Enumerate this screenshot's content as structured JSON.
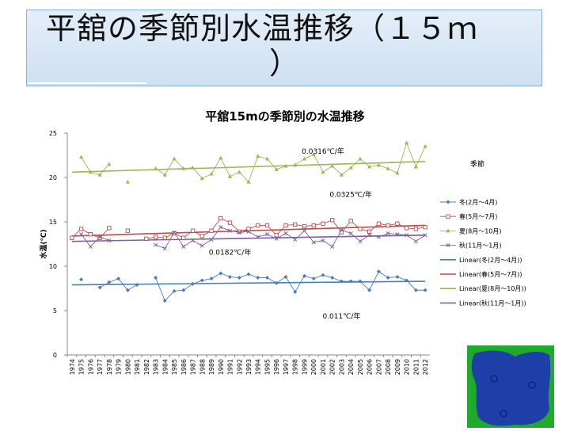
{
  "slide": {
    "title_line1": "平舘の季節別水温推移（１５ｍ",
    "title_line2": "）"
  },
  "chart_data": {
    "type": "line",
    "title": "平舘15mの季節別の水温推移",
    "ylabel": "水温(℃)",
    "ylim": [
      0,
      25
    ],
    "yticks": [
      0,
      5,
      10,
      15,
      20,
      25
    ],
    "grid": false,
    "legend_title": "季節",
    "legend_position": "right",
    "categories": [
      "1974",
      "1975",
      "1976",
      "1977",
      "1978",
      "1979",
      "1980",
      "1981",
      "1982",
      "1983",
      "1984",
      "1985",
      "1986",
      "1987",
      "1988",
      "1989",
      "1990",
      "1991",
      "1992",
      "1993",
      "1994",
      "1995",
      "1996",
      "1997",
      "1998",
      "1999",
      "2000",
      "2001",
      "2002",
      "2003",
      "2004",
      "2005",
      "2006",
      "2007",
      "2008",
      "2009",
      "2010",
      "2011",
      "2012"
    ],
    "series": [
      {
        "name": "冬(2月～4月)",
        "color": "#4a7ebb",
        "marker": "diamond",
        "values": [
          null,
          8.5,
          null,
          7.6,
          8.2,
          8.6,
          7.3,
          7.9,
          null,
          8.7,
          6.1,
          7.2,
          7.3,
          8.0,
          8.4,
          8.6,
          9.2,
          8.8,
          8.7,
          9.1,
          8.7,
          8.7,
          8.1,
          8.8,
          7.1,
          8.9,
          8.6,
          9.0,
          8.7,
          8.3,
          8.3,
          8.3,
          7.3,
          9.4,
          8.7,
          8.8,
          8.4,
          7.3,
          7.3
        ]
      },
      {
        "name": "春(5月～7月)",
        "color": "#be4b48",
        "marker": "square",
        "values": [
          13.2,
          14.2,
          13.6,
          13.2,
          14.3,
          null,
          14.0,
          null,
          13.1,
          13.3,
          13.2,
          13.7,
          13.2,
          14.0,
          13.4,
          14.0,
          15.4,
          14.9,
          13.9,
          14.2,
          14.6,
          14.6,
          13.5,
          14.6,
          14.7,
          14.5,
          14.6,
          14.8,
          15.2,
          13.8,
          15.1,
          14.2,
          13.9,
          14.8,
          14.6,
          14.8,
          14.3,
          14.2,
          14.4
        ]
      },
      {
        "name": "夏(8月～10月)",
        "color": "#98b954",
        "marker": "triangle",
        "values": [
          null,
          22.3,
          20.6,
          20.3,
          21.5,
          null,
          19.5,
          null,
          null,
          21.0,
          20.3,
          22.1,
          21.0,
          21.1,
          19.9,
          20.4,
          22.2,
          20.1,
          20.6,
          19.5,
          22.4,
          22.1,
          20.9,
          21.3,
          21.4,
          22.1,
          22.6,
          20.6,
          21.3,
          20.3,
          21.1,
          22.1,
          21.2,
          21.4,
          21.0,
          20.5,
          23.9,
          21.2,
          23.5
        ]
      },
      {
        "name": "秋(11月～1月)",
        "color": "#7d60a0",
        "marker": "x",
        "values": [
          null,
          13.6,
          12.2,
          13.3,
          12.9,
          null,
          null,
          null,
          null,
          12.4,
          12.0,
          13.8,
          12.2,
          12.9,
          12.3,
          13.0,
          14.4,
          14.0,
          13.8,
          13.9,
          13.3,
          13.6,
          13.1,
          13.7,
          13.0,
          14.0,
          12.7,
          12.9,
          12.2,
          14.1,
          13.7,
          12.8,
          13.5,
          13.3,
          13.7,
          13.6,
          13.5,
          12.8,
          13.5
        ]
      }
    ],
    "trendlines": [
      {
        "name": "Linear(冬(2月～4月))",
        "color": "#4a7ebb",
        "start": 7.9,
        "end": 8.3
      },
      {
        "name": "Linear(春(5月～7月))",
        "color": "#be4b48",
        "start": 13.4,
        "end": 14.6
      },
      {
        "name": "Linear(夏(8月～10月))",
        "color": "#98b954",
        "start": 20.6,
        "end": 21.8
      },
      {
        "name": "Linear(秋(11月～1月))",
        "color": "#7d60a0",
        "start": 12.8,
        "end": 13.5
      }
    ],
    "annotations": [
      {
        "text": "0.0316℃/年",
        "year": "2001",
        "value": 22.7
      },
      {
        "text": "0.0325℃/年",
        "year": "2004",
        "value": 17.8
      },
      {
        "text": "0.0182℃/年",
        "year": "1991",
        "value": 11.3
      },
      {
        "text": "0.011℃/年",
        "year": "2003",
        "value": 4.1
      }
    ]
  },
  "map": {
    "water_color": "#1f3fa8",
    "land_color": "#1faa2b"
  }
}
